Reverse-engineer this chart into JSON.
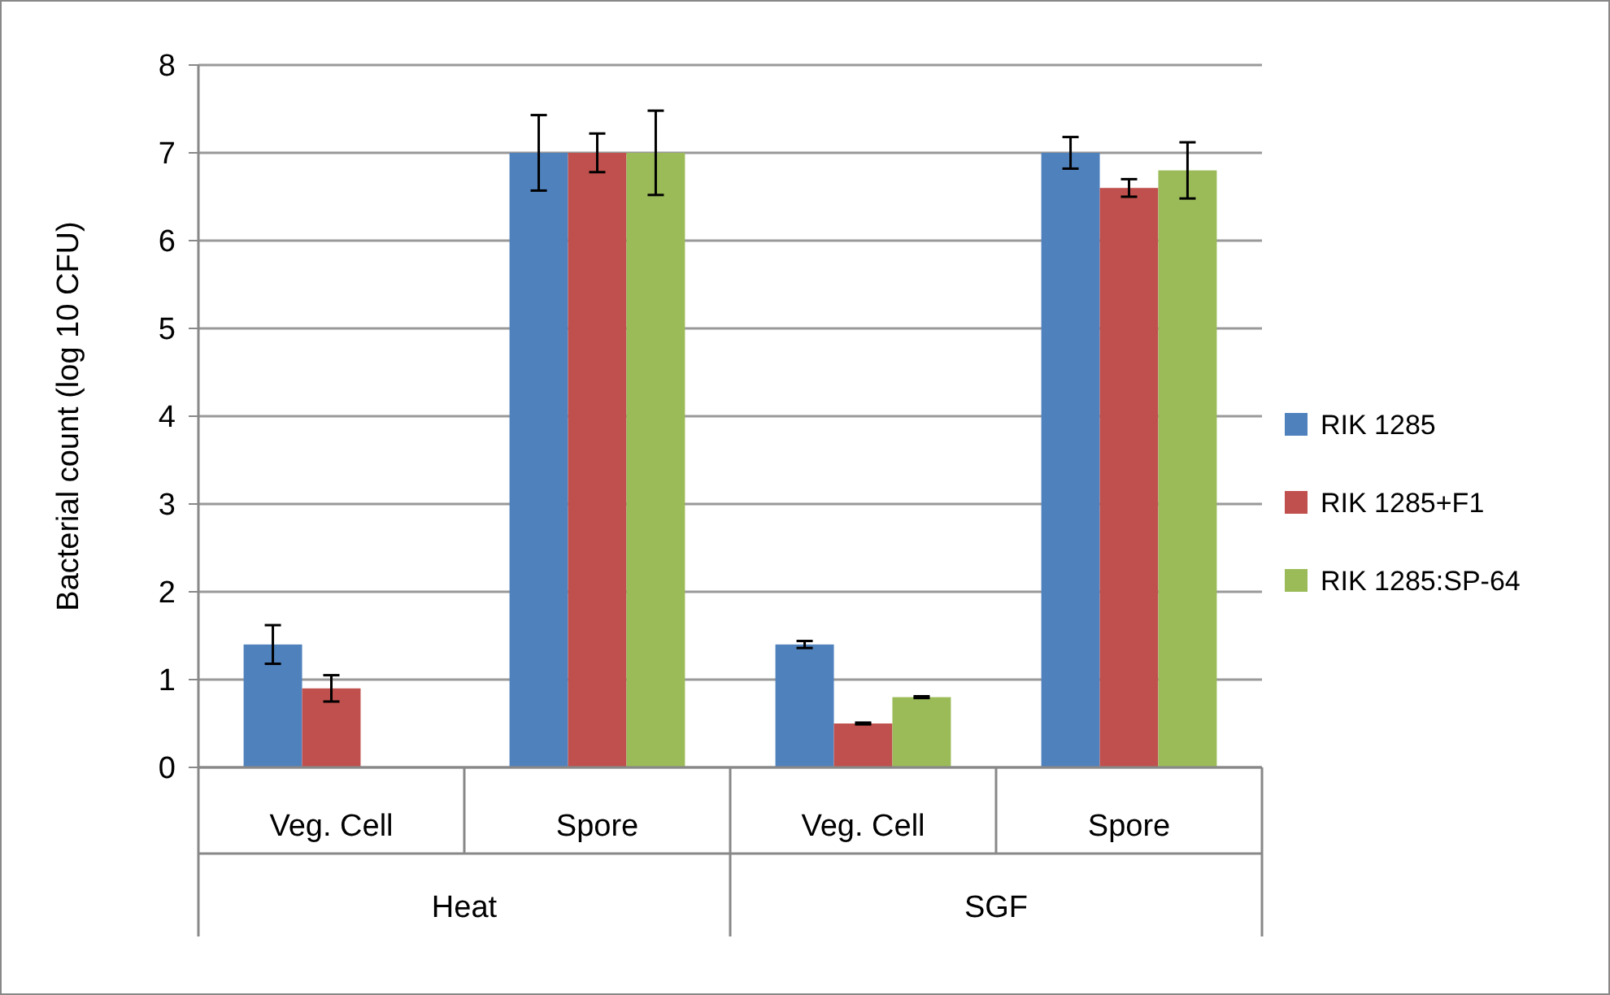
{
  "chart_data": {
    "type": "bar",
    "ylabel": "Bacterial count (log 10 CFU)",
    "categories": [
      "Veg. Cell",
      "Spore",
      "Veg. Cell",
      "Spore"
    ],
    "annotations": [
      "Heat",
      "SGF"
    ],
    "ylim": [
      0,
      8
    ],
    "yticks": [
      0,
      1,
      2,
      3,
      4,
      5,
      6,
      7,
      8
    ],
    "grid": "y",
    "legend": "right",
    "series": [
      {
        "name": "RIK 1285",
        "color": "#4f81bd",
        "values": [
          1.4,
          7,
          1.4,
          7
        ],
        "errors": [
          0.22,
          0.43,
          0.04,
          0.18
        ]
      },
      {
        "name": "RIK 1285+F1",
        "color": "#c0504d",
        "values": [
          0.9,
          7,
          0.5,
          6.6
        ],
        "errors": [
          0.15,
          0.22,
          0.01,
          0.1
        ]
      },
      {
        "name": "RIK 1285:SP-64",
        "color": "#9bbb59",
        "values": [
          0,
          7,
          0.8,
          6.8
        ],
        "errors": [
          null,
          0.48,
          0.01,
          0.32
        ]
      }
    ]
  }
}
